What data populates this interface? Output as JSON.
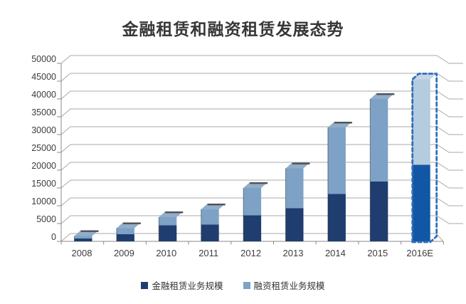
{
  "title": "金融租赁和融资租赁发展态势",
  "chart_data": {
    "type": "bar",
    "stacked": true,
    "style": "pseudo-3d-columns",
    "title": "金融租赁和融资租赁发展态势",
    "categories": [
      "2008",
      "2009",
      "2010",
      "2011",
      "2012",
      "2013",
      "2014",
      "2015",
      "2016E"
    ],
    "series": [
      {
        "name": "金融租赁业务规模",
        "color": "#1f3d6e",
        "values": [
          800,
          2000,
          4500,
          4700,
          7300,
          9300,
          13300,
          16800,
          21500
        ]
      },
      {
        "name": "融资租赁业务规模",
        "color": "#7da2c6",
        "values": [
          700,
          1700,
          2300,
          4300,
          7700,
          11200,
          18700,
          23200,
          24000
        ]
      }
    ],
    "totals": [
      1500,
      3700,
      6800,
      9000,
      15000,
      20500,
      32000,
      40000,
      45500
    ],
    "ylim": [
      0,
      50000
    ],
    "yticks": [
      0,
      5000,
      10000,
      15000,
      20000,
      25000,
      30000,
      35000,
      40000,
      45000,
      50000
    ],
    "xlabel": "",
    "ylabel": "",
    "grid": true,
    "legend_position": "bottom",
    "estimate_category": "2016E",
    "estimate_style": {
      "fill_dark": "#1157a6",
      "fill_light": "#b5cbdf",
      "fill_top": "#c6d6e6",
      "border": "#2f6fba"
    }
  }
}
